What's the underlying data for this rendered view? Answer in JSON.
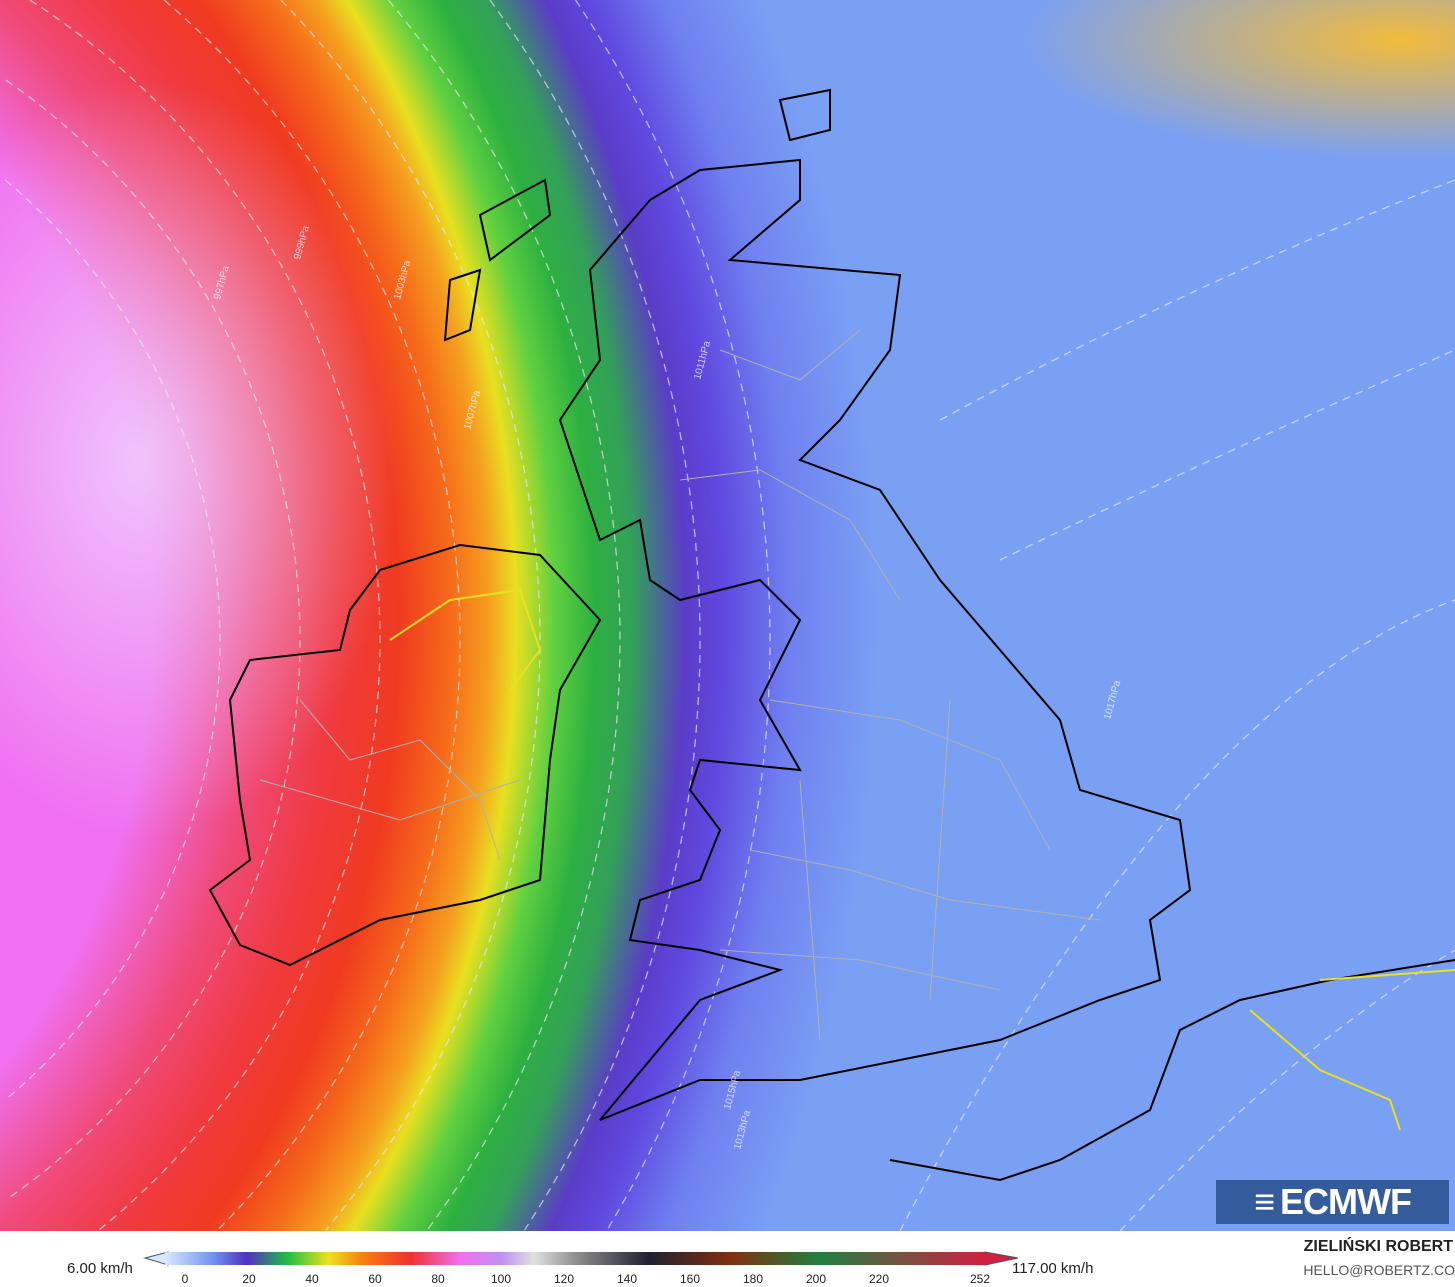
{
  "map": {
    "variable": "wind speed",
    "isobar_labels": [
      "1013hPa",
      "1015hPa",
      "1017hPa",
      "1011hPa",
      "1007hPa",
      "1003hPa",
      "999hPa",
      "997hPa"
    ],
    "colors": {
      "coast": "#000000",
      "borders": "#b0b0b0",
      "isobars": "#e8e8f0"
    }
  },
  "logo": {
    "text": "ECMWF"
  },
  "legend": {
    "min_label": "6.00 km/h",
    "max_label": "117.00 km/h",
    "ticks": [
      "0",
      "20",
      "40",
      "60",
      "80",
      "100",
      "120",
      "140",
      "160",
      "180",
      "200",
      "220",
      "252"
    ]
  },
  "credit": {
    "author": "ZIELIŃSKI ROBERT",
    "email": "HELLO@ROBERTZ.CO"
  }
}
